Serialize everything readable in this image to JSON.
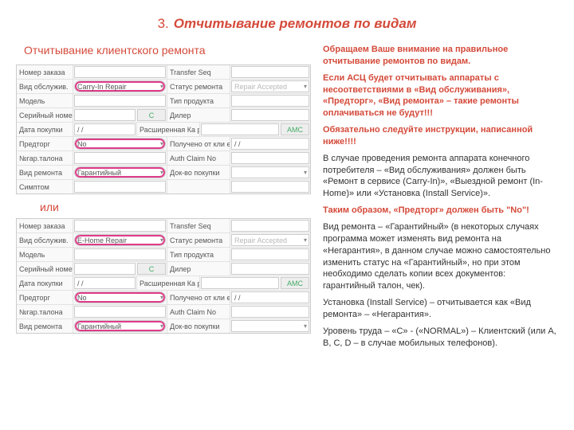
{
  "title_num": "3.",
  "title": "Отчитывание ремонтов по видам",
  "subheading": "Отчитывание клиентского ремонта",
  "or_label": "или",
  "form1": {
    "rows": [
      {
        "l1": "Номер заказа",
        "f1": "",
        "l2": "Transfer Seq",
        "f2": ""
      },
      {
        "l1": "Вид обслужив.",
        "f1": "Carry-In Repair",
        "hl1": true,
        "dd1": true,
        "l2": "Статус ремонта",
        "f2": "Repair Accepted",
        "faded2": true,
        "dd2": true
      },
      {
        "l1": "Модель",
        "f1": "",
        "l2": "Тип продукта",
        "f2": ""
      },
      {
        "l1": "Серийный номер",
        "f1": "",
        "btn1": "C",
        "l2": "Дилер",
        "f2": ""
      },
      {
        "l1": "Дата покупки",
        "f1": "/ /",
        "l2": "Расширенная Ка рточка",
        "f2": "",
        "btn2": "AMC"
      },
      {
        "l1": "Предторг",
        "f1": "No",
        "hl1": true,
        "dd1": true,
        "l2": "Получено от кли ента",
        "f2": "/ /"
      },
      {
        "l1": "№гар.талона",
        "f1": "",
        "l2": "Auth Claim No",
        "f2": ""
      },
      {
        "l1": "Вид ремонта",
        "f1": "Гарантийный",
        "hl1": true,
        "dd1": true,
        "l2": "Док-во покупки",
        "f2": "",
        "dd2": true
      },
      {
        "l1": "Симптом",
        "f1": "",
        "l2": "",
        "f2": ""
      }
    ]
  },
  "form2": {
    "rows": [
      {
        "l1": "Номер заказа",
        "f1": "",
        "l2": "Transfer Seq",
        "f2": ""
      },
      {
        "l1": "Вид обслужив.",
        "f1": "E-Home Repair",
        "hl1": true,
        "dd1": true,
        "l2": "Статус ремонта",
        "f2": "Repair Accepted",
        "faded2": true,
        "dd2": true
      },
      {
        "l1": "Модель",
        "f1": "",
        "l2": "Тип продукта",
        "f2": ""
      },
      {
        "l1": "Серийный номер",
        "f1": "",
        "btn1": "C",
        "l2": "Дилер",
        "f2": ""
      },
      {
        "l1": "Дата покупки",
        "f1": "/ /",
        "l2": "Расширенная Ка рточка",
        "f2": "",
        "btn2": "AMC"
      },
      {
        "l1": "Предторг",
        "f1": "No",
        "hl1": true,
        "dd1": true,
        "l2": "Получено от кли ента",
        "f2": "/ /"
      },
      {
        "l1": "№гар.талона",
        "f1": "",
        "l2": "Auth Claim No",
        "f2": ""
      },
      {
        "l1": "Вид ремонта",
        "f1": "Гарантийный",
        "hl1": true,
        "dd1": true,
        "l2": "Док-во покупки",
        "f2": "",
        "dd2": true
      }
    ]
  },
  "rt": {
    "p1": "Обращаем Ваше внимание на правильное отчитывание ремонтов по видам.",
    "p2": "Если АСЦ будет отчитывать аппараты с несоответствиями в «Вид обслуживания», «Предторг», «Вид ремонта» – такие ремонты оплачиваться не будут!!!",
    "p3": "Обязательно следуйте инструкции, написанной ниже!!!!",
    "p4": "В случае проведения ремонта аппарата конечного потребителя – «Вид обслуживания» должен быть «Ремонт в сервисе (Carry-In)», «Выездной ремонт (In-Home)» или «Установка (Install Service)».",
    "p5": "Таким образом, «Предторг» должен быть \"No\"!",
    "p6": "Вид ремонта – «Гарантийный» (в некоторых случаях программа может изменять вид ремонта на «Негарантия», в данном случае можно самостоятельно изменить статус на «Гарантийный», но при этом необходимо сделать копии всех документов: гарантийный талон, чек).",
    "p7": "Установка (Install Service) – отчитывается как «Вид ремонта» – «Негарантия».",
    "p8": "Уровень труда – «C» - («NORMAL») – Клиентский (или A, B, C, D – в случае мобильных телефонов)."
  }
}
